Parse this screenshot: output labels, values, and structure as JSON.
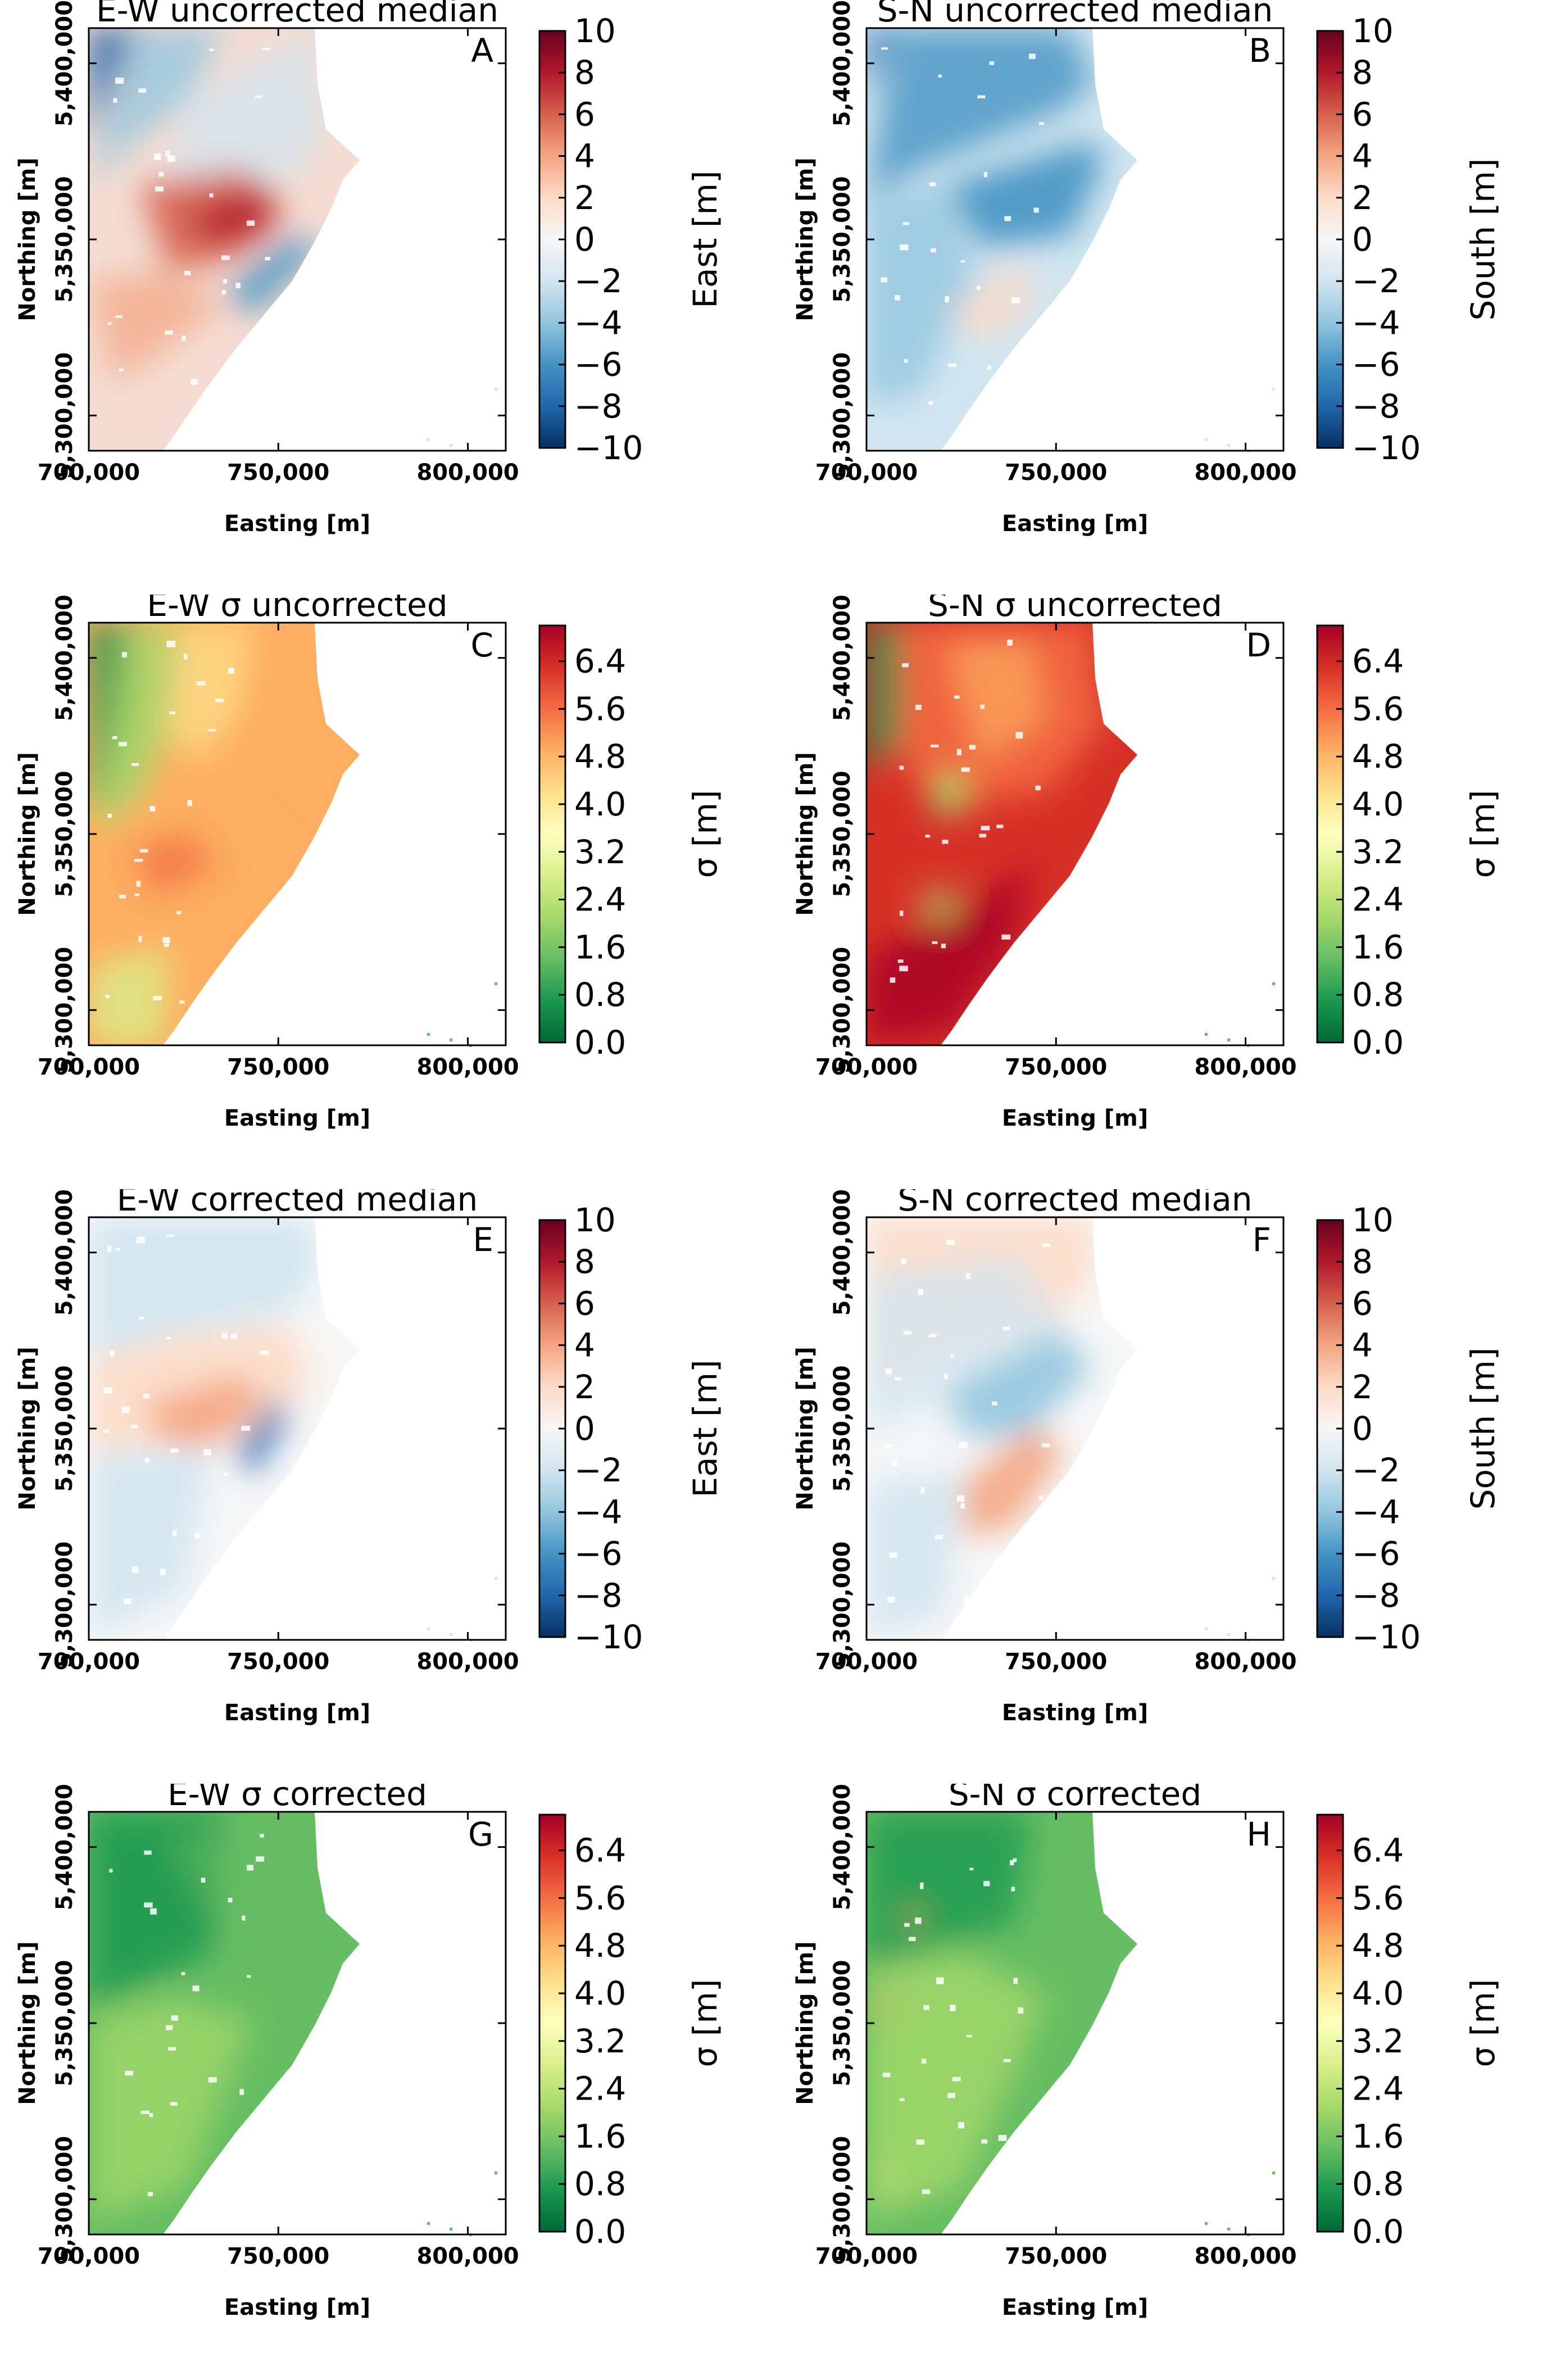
{
  "chart_data": [
    {
      "type": "heatmap",
      "letter": "A",
      "title": "E-W uncorrected median",
      "xlabel": "Easting [m]",
      "ylabel": "Northing [m]",
      "x_ticks": [
        "700,000",
        "750,000",
        "800,000"
      ],
      "y_ticks": [
        "5,400,000",
        "5,350,000",
        "5,300,000"
      ],
      "xlim": [
        700000,
        810000
      ],
      "ylim": [
        5290000,
        5410000
      ],
      "colorbar": {
        "label": "East [m]",
        "cmap": "diverging",
        "ticks": [
          "10",
          "8",
          "6",
          "4",
          "2",
          "0",
          "−2",
          "−4",
          "−6",
          "−8",
          "−10"
        ],
        "range": [
          -10,
          10
        ]
      }
    },
    {
      "type": "heatmap",
      "letter": "B",
      "title": "S-N uncorrected median",
      "xlabel": "Easting [m]",
      "ylabel": "Northing [m]",
      "x_ticks": [
        "700,000",
        "750,000",
        "800,000"
      ],
      "y_ticks": [
        "5,400,000",
        "5,350,000",
        "5,300,000"
      ],
      "xlim": [
        700000,
        810000
      ],
      "ylim": [
        5290000,
        5410000
      ],
      "colorbar": {
        "label": "South [m]",
        "cmap": "diverging",
        "ticks": [
          "10",
          "8",
          "6",
          "4",
          "2",
          "0",
          "−2",
          "−4",
          "−6",
          "−8",
          "−10"
        ],
        "range": [
          -10,
          10
        ]
      }
    },
    {
      "type": "heatmap",
      "letter": "C",
      "title": "E-W σ uncorrected",
      "xlabel": "Easting [m]",
      "ylabel": "Northing [m]",
      "x_ticks": [
        "700,000",
        "750,000",
        "800,000"
      ],
      "y_ticks": [
        "5,400,000",
        "5,350,000",
        "5,300,000"
      ],
      "xlim": [
        700000,
        810000
      ],
      "ylim": [
        5290000,
        5410000
      ],
      "colorbar": {
        "label": "σ [m]",
        "cmap": "sequential",
        "ticks": [
          "6.4",
          "5.6",
          "4.8",
          "4.0",
          "3.2",
          "2.4",
          "1.6",
          "0.8",
          "0.0"
        ],
        "range": [
          0,
          7
        ]
      }
    },
    {
      "type": "heatmap",
      "letter": "D",
      "title": "S-N σ uncorrected",
      "xlabel": "Easting [m]",
      "ylabel": "Northing [m]",
      "x_ticks": [
        "700,000",
        "750,000",
        "800,000"
      ],
      "y_ticks": [
        "5,400,000",
        "5,350,000",
        "5,300,000"
      ],
      "xlim": [
        700000,
        810000
      ],
      "ylim": [
        5290000,
        5410000
      ],
      "colorbar": {
        "label": "σ [m]",
        "cmap": "sequential",
        "ticks": [
          "6.4",
          "5.6",
          "4.8",
          "4.0",
          "3.2",
          "2.4",
          "1.6",
          "0.8",
          "0.0"
        ],
        "range": [
          0,
          7
        ]
      }
    },
    {
      "type": "heatmap",
      "letter": "E",
      "title": "E-W corrected median",
      "xlabel": "Easting [m]",
      "ylabel": "Northing [m]",
      "x_ticks": [
        "700,000",
        "750,000",
        "800,000"
      ],
      "y_ticks": [
        "5,400,000",
        "5,350,000",
        "5,300,000"
      ],
      "xlim": [
        700000,
        810000
      ],
      "ylim": [
        5290000,
        5410000
      ],
      "colorbar": {
        "label": "East [m]",
        "cmap": "diverging",
        "ticks": [
          "10",
          "8",
          "6",
          "4",
          "2",
          "0",
          "−2",
          "−4",
          "−6",
          "−8",
          "−10"
        ],
        "range": [
          -10,
          10
        ]
      }
    },
    {
      "type": "heatmap",
      "letter": "F",
      "title": "S-N corrected median",
      "xlabel": "Easting [m]",
      "ylabel": "Northing [m]",
      "x_ticks": [
        "700,000",
        "750,000",
        "800,000"
      ],
      "y_ticks": [
        "5,400,000",
        "5,350,000",
        "5,300,000"
      ],
      "xlim": [
        700000,
        810000
      ],
      "ylim": [
        5290000,
        5410000
      ],
      "colorbar": {
        "label": "South [m]",
        "cmap": "diverging",
        "ticks": [
          "10",
          "8",
          "6",
          "4",
          "2",
          "0",
          "−2",
          "−4",
          "−6",
          "−8",
          "−10"
        ],
        "range": [
          -10,
          10
        ]
      }
    },
    {
      "type": "heatmap",
      "letter": "G",
      "title": "E-W σ corrected",
      "xlabel": "Easting [m]",
      "ylabel": "Northing [m]",
      "x_ticks": [
        "700,000",
        "750,000",
        "800,000"
      ],
      "y_ticks": [
        "5,400,000",
        "5,350,000",
        "5,300,000"
      ],
      "xlim": [
        700000,
        810000
      ],
      "ylim": [
        5290000,
        5410000
      ],
      "colorbar": {
        "label": "σ [m]",
        "cmap": "sequential",
        "ticks": [
          "6.4",
          "5.6",
          "4.8",
          "4.0",
          "3.2",
          "2.4",
          "1.6",
          "0.8",
          "0.0"
        ],
        "range": [
          0,
          7
        ]
      }
    },
    {
      "type": "heatmap",
      "letter": "H",
      "title": "S-N σ corrected",
      "xlabel": "Easting [m]",
      "ylabel": "Northing [m]",
      "x_ticks": [
        "700,000",
        "750,000",
        "800,000"
      ],
      "y_ticks": [
        "5,400,000",
        "5,350,000",
        "5,300,000"
      ],
      "xlim": [
        700000,
        810000
      ],
      "ylim": [
        5290000,
        5410000
      ],
      "colorbar": {
        "label": "σ [m]",
        "cmap": "sequential",
        "ticks": [
          "6.4",
          "5.6",
          "4.8",
          "4.0",
          "3.2",
          "2.4",
          "1.6",
          "0.8",
          "0.0"
        ],
        "range": [
          0,
          7
        ]
      }
    }
  ],
  "colors": {
    "diverging": [
      "#053061",
      "#2166ac",
      "#4393c3",
      "#92c5de",
      "#d1e5f0",
      "#f7f7f7",
      "#fddbc7",
      "#f4a582",
      "#d6604d",
      "#b2182b",
      "#67001f"
    ],
    "sequential": [
      "#006837",
      "#1a9850",
      "#66bd63",
      "#a6d96a",
      "#d9ef8b",
      "#ffffbf",
      "#fee08b",
      "#fdae61",
      "#f46d43",
      "#d73027",
      "#a50026"
    ]
  }
}
